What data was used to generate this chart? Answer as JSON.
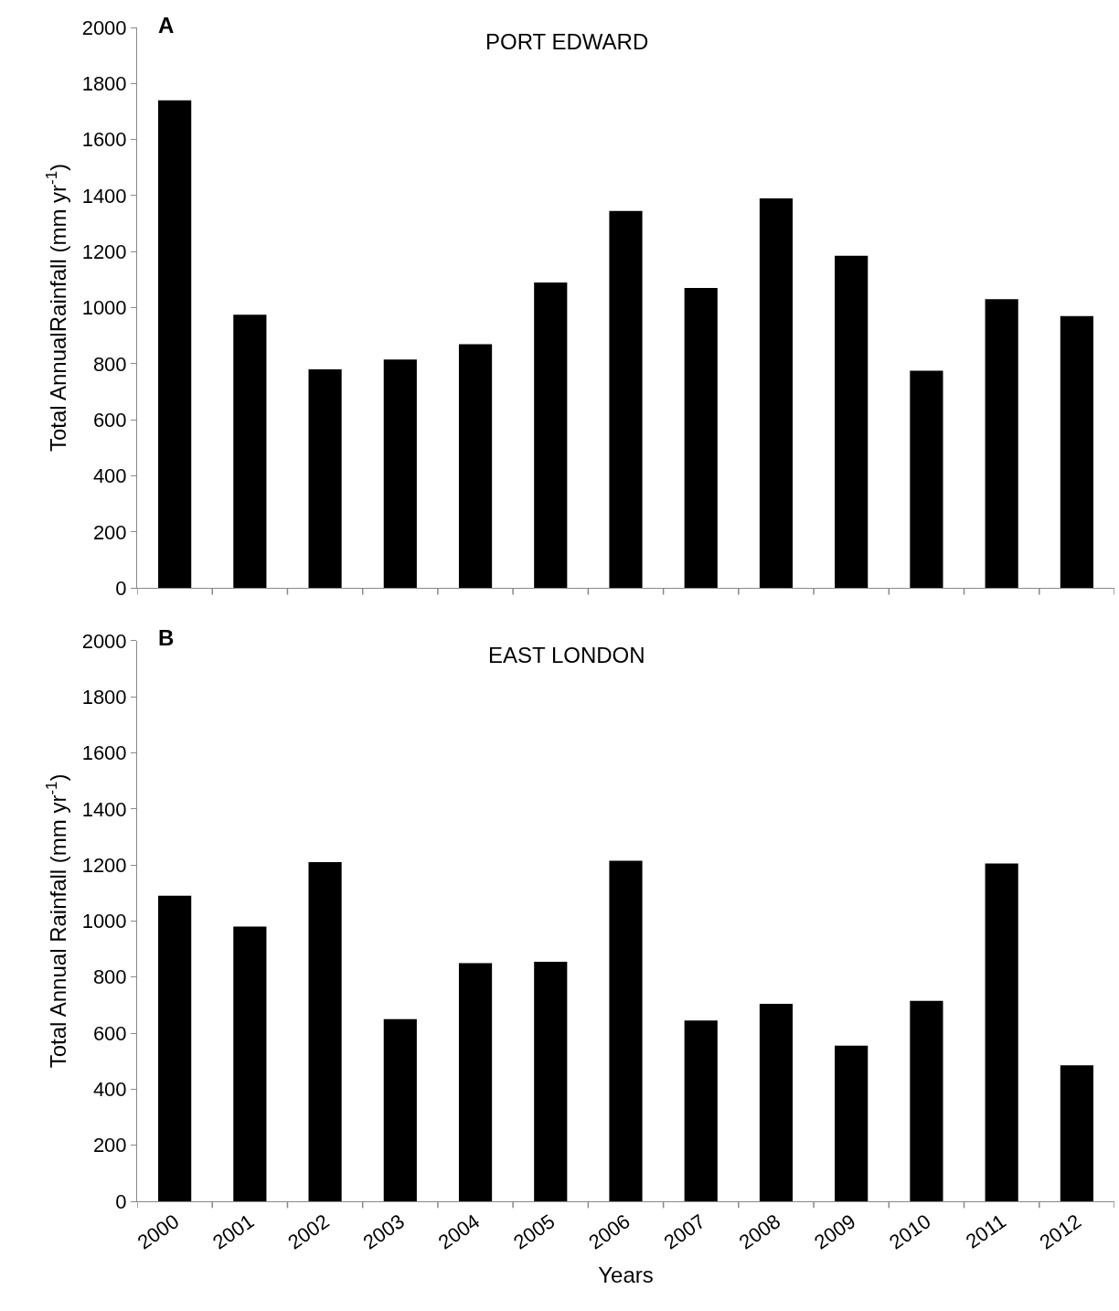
{
  "chart_data": [
    {
      "type": "bar",
      "title": "PORT EDWARD",
      "ylabel": "Total AnnualRainfall (mm yr$^{-1}$)",
      "annotations": [
        "A"
      ],
      "categories": [
        "2000",
        "2001",
        "2002",
        "2003",
        "2004",
        "2005",
        "2006",
        "2007",
        "2008",
        "2009",
        "2010",
        "2011",
        "2012"
      ],
      "series": [
        {
          "color": "#000000",
          "values": [
            1740,
            975,
            780,
            815,
            870,
            1090,
            1345,
            1070,
            1390,
            1185,
            775,
            1030,
            970
          ]
        }
      ],
      "ylim": [
        0,
        2000
      ],
      "yticks": [
        0,
        200,
        400,
        600,
        800,
        1000,
        1200,
        1400,
        1600,
        1800,
        2000
      ],
      "tick_labels": "y"
    },
    {
      "type": "bar",
      "title": "EAST LONDON",
      "xlabel": "Years",
      "ylabel": "Total Annual Rainfall (mm yr$^{-1}$)",
      "annotations": [
        "B"
      ],
      "categories": [
        "2000",
        "2001",
        "2002",
        "2003",
        "2004",
        "2005",
        "2006",
        "2007",
        "2008",
        "2009",
        "2010",
        "2011",
        "2012"
      ],
      "series": [
        {
          "color": "#000000",
          "values": [
            1090,
            980,
            1210,
            650,
            850,
            855,
            1215,
            645,
            705,
            555,
            715,
            1205,
            485
          ]
        }
      ],
      "ylim": [
        0,
        2000
      ],
      "yticks": [
        0,
        200,
        400,
        600,
        800,
        1000,
        1200,
        1400,
        1600,
        1800,
        2000
      ]
    }
  ]
}
